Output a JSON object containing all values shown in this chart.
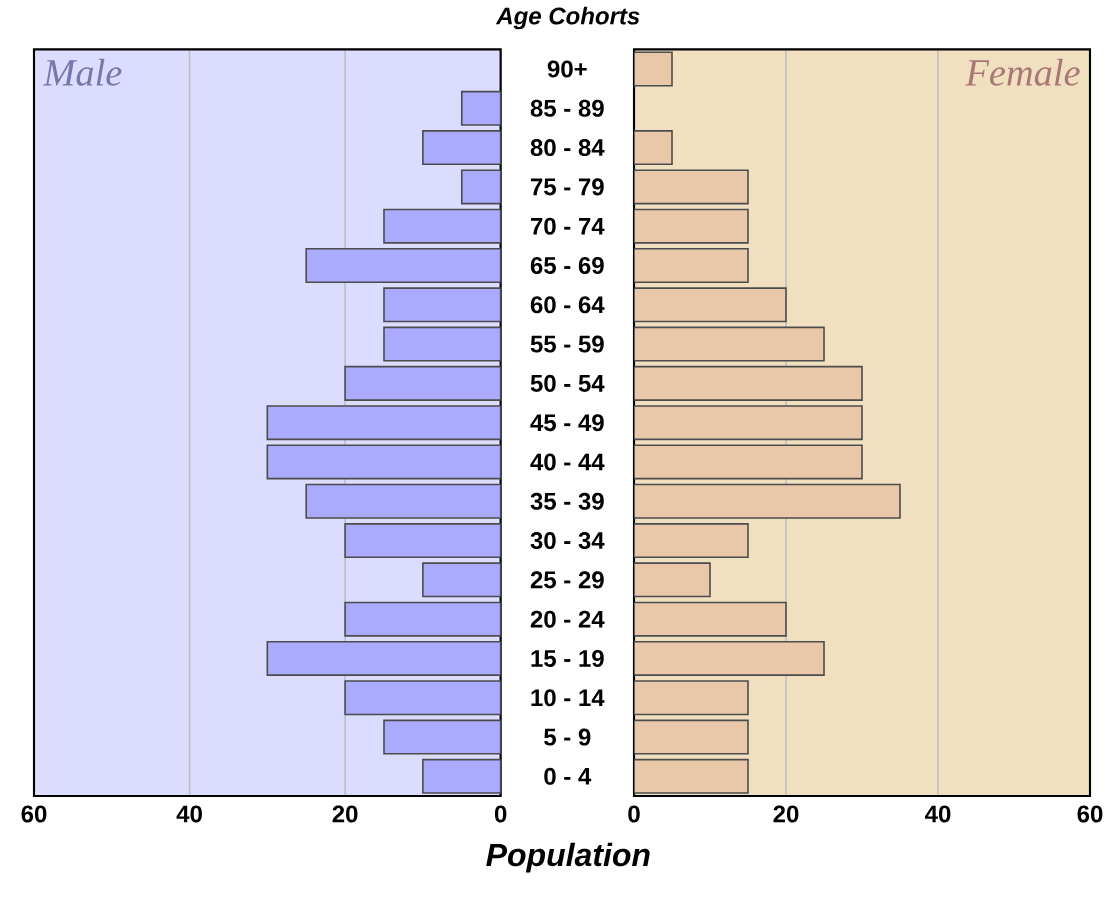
{
  "chart_data": [
    {
      "type": "bar",
      "orientation": "horizontal",
      "title": "Age Cohorts",
      "xlabel": "Population",
      "categories": [
        "90+",
        "85 - 89",
        "80 - 84",
        "75 - 79",
        "70 - 74",
        "65 - 69",
        "60 - 64",
        "55 - 59",
        "50 - 54",
        "45 - 49",
        "40 - 44",
        "35 - 39",
        "30 - 34",
        "25 - 29",
        "20 - 24",
        "15 - 19",
        "10 - 14",
        "5 - 9",
        "0 - 4"
      ],
      "series": [
        {
          "name": "Male",
          "color": "#aaaaff",
          "values": [
            null,
            5,
            10,
            5,
            15,
            25,
            15,
            15,
            20,
            30,
            30,
            25,
            20,
            10,
            20,
            30,
            20,
            15,
            10
          ]
        }
      ],
      "xlim": [
        60,
        0
      ],
      "xticks": [
        60,
        40,
        20,
        0
      ],
      "grid": "x"
    },
    {
      "type": "bar",
      "orientation": "horizontal",
      "series": [
        {
          "name": "Female",
          "color": "#e8c8a8",
          "values": [
            5,
            null,
            5,
            15,
            15,
            15,
            20,
            25,
            30,
            30,
            30,
            35,
            15,
            10,
            20,
            25,
            15,
            15,
            15
          ]
        }
      ],
      "xlim": [
        0,
        60
      ],
      "xticks": [
        0,
        20,
        40,
        60
      ],
      "grid": "x",
      "tick_labels": "x"
    }
  ]
}
